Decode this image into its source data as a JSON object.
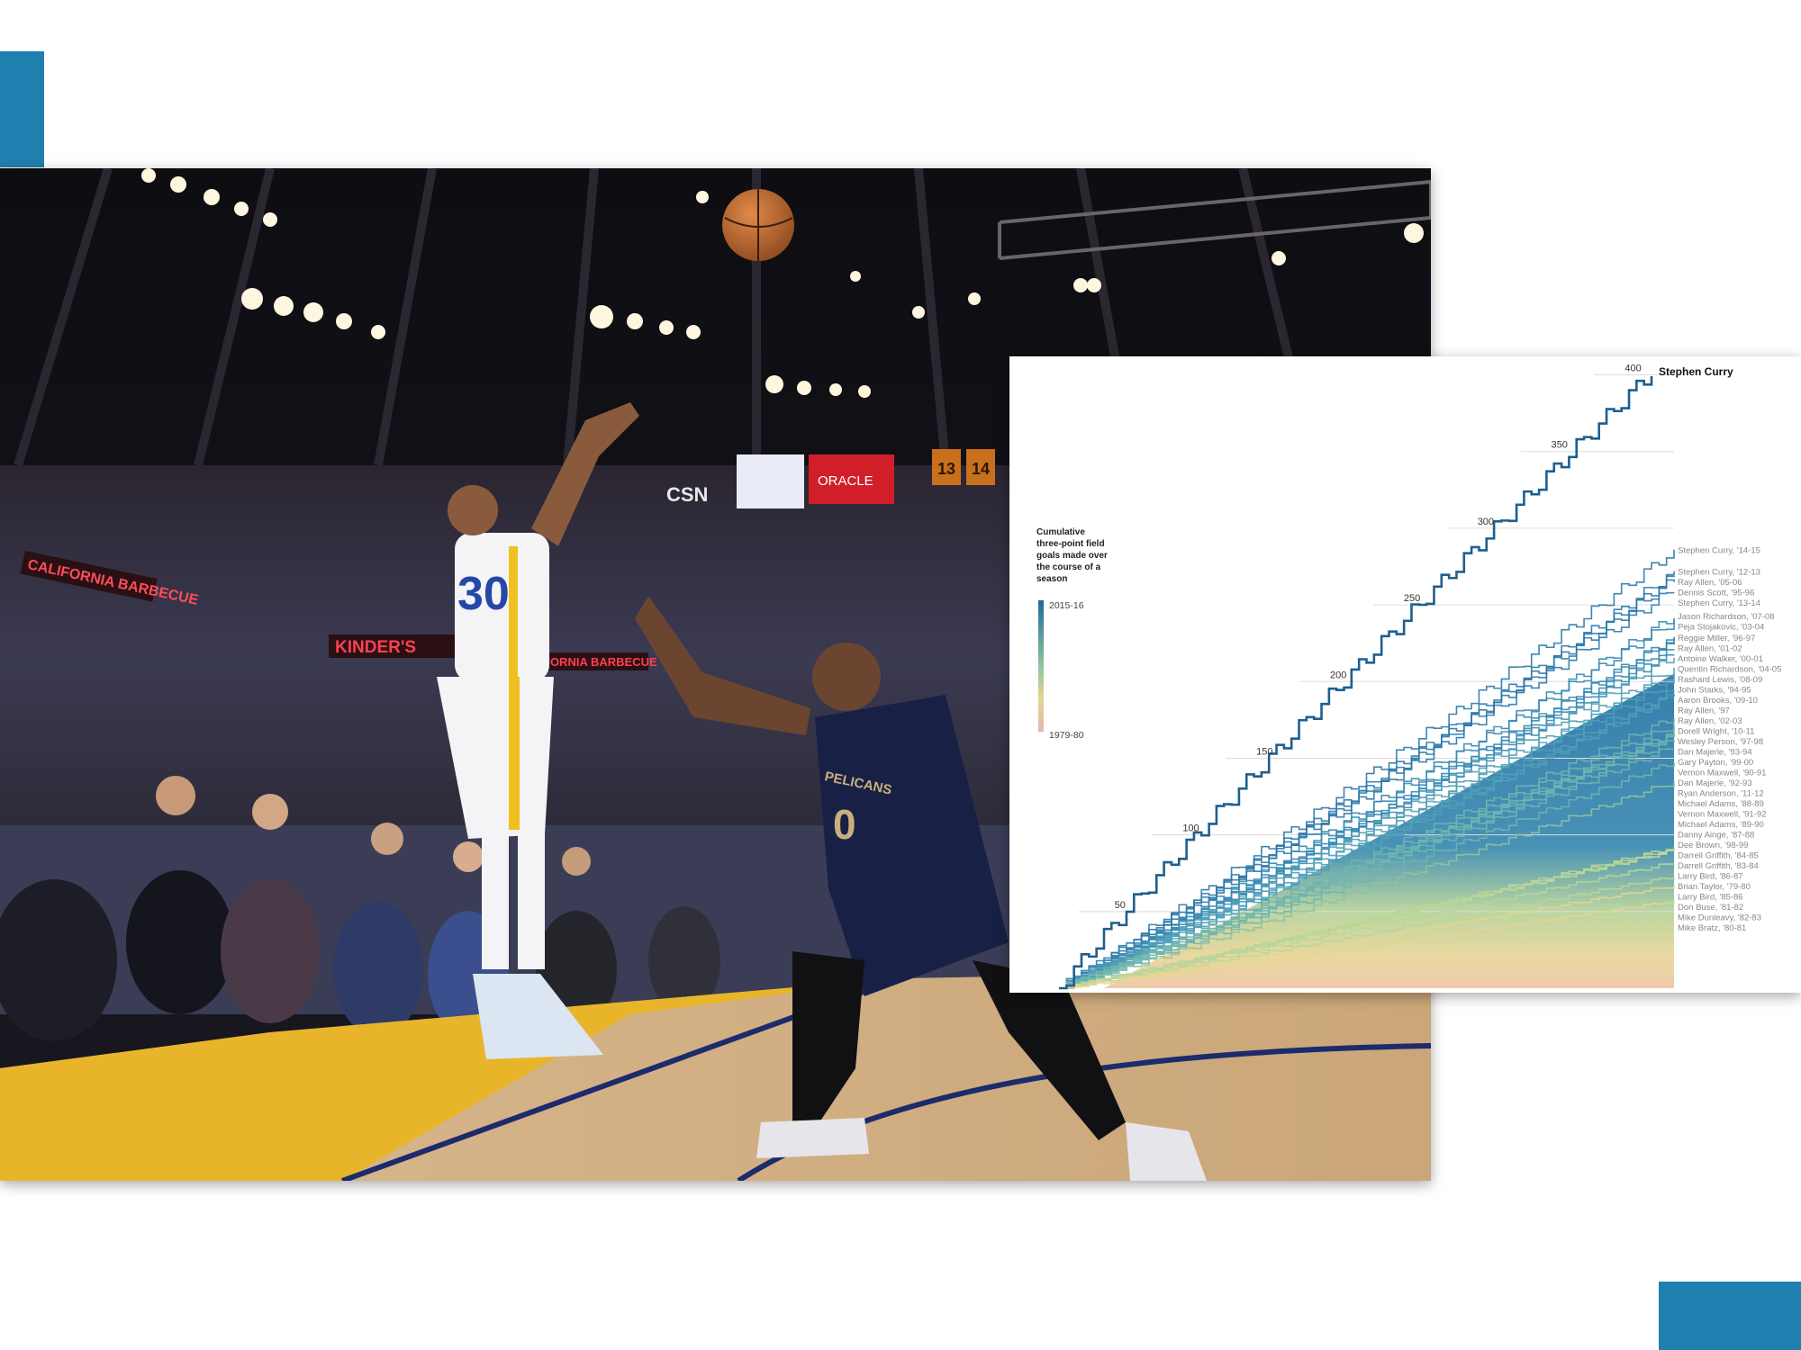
{
  "theme": {
    "accent": "#1f7fae",
    "curry_line": "#1d5f8f",
    "recent_season": "#2a78a8",
    "old_season": "#e3b4b6"
  },
  "photo": {
    "arena_signs": [
      "CALIFORNIA BARBECUE",
      "KINDER'S",
      "FORNIA BARBECUE",
      "CSN",
      "ORACLE",
      "13",
      "14"
    ],
    "jerseys": {
      "shooter": "30",
      "defender_team": "PELICANS",
      "defender_number": "0"
    }
  },
  "chart_data": {
    "type": "line",
    "title": "",
    "legend": {
      "title_lines": [
        "Cumulative",
        "three-point field",
        "goals made over",
        "the course of a",
        "season"
      ],
      "top_label": "2015-16",
      "bottom_label": "1979-80",
      "placement": "left"
    },
    "y_ticks": [
      50,
      100,
      150,
      200,
      250,
      300,
      350,
      400
    ],
    "ylim": [
      0,
      405
    ],
    "x_range_games": [
      0,
      82
    ],
    "highlight": {
      "name": "Stephen Curry",
      "season": "2015-16",
      "total": 402,
      "games": 79
    },
    "labeled_series": [
      {
        "name": "Stephen Curry, '14-15",
        "total": 286
      },
      {
        "name": "Stephen Curry, '12-13",
        "total": 272
      },
      {
        "name": "Ray Allen, '05-06",
        "total": 269
      },
      {
        "name": "Dennis Scott, '95-96",
        "total": 267
      },
      {
        "name": "Stephen Curry, '13-14",
        "total": 261
      },
      {
        "name": "Jason Richardson, '07-08",
        "total": 243
      },
      {
        "name": "Peja Stojakovic, '03-04",
        "total": 240
      },
      {
        "name": "Reggie Miller, '96-97",
        "total": 229
      },
      {
        "name": "Ray Allen, '01-02",
        "total": 229
      },
      {
        "name": "Antoine Walker, '00-01",
        "total": 221
      },
      {
        "name": "Quentin Richardson, '04-05",
        "total": 226
      },
      {
        "name": "Rashard Lewis, '08-09",
        "total": 220
      },
      {
        "name": "John Starks, '94-95",
        "total": 217
      },
      {
        "name": "Aaron Brooks, '09-10",
        "total": 209
      },
      {
        "name": "Ray Allen, '97",
        "total": 205
      },
      {
        "name": "Ray Allen, '02-03",
        "total": 201
      },
      {
        "name": "Dorell Wright, '10-11",
        "total": 194
      },
      {
        "name": "Wesley Person, '97-98",
        "total": 192
      },
      {
        "name": "Dan Majerle, '93-94",
        "total": 192
      },
      {
        "name": "Gary Payton, '99-00",
        "total": 177
      },
      {
        "name": "Vernon Maxwell, '90-91",
        "total": 172
      },
      {
        "name": "Dan Majerle, '92-93",
        "total": 167
      },
      {
        "name": "Ryan Anderson, '11-12",
        "total": 166
      },
      {
        "name": "Michael Adams, '88-89",
        "total": 166
      },
      {
        "name": "Vernon Maxwell, '91-92",
        "total": 162
      },
      {
        "name": "Michael Adams, '89-90",
        "total": 158
      },
      {
        "name": "Danny Ainge, '87-88",
        "total": 148
      },
      {
        "name": "Dee Brown, '98-99",
        "total": 135
      },
      {
        "name": "Darrell Griffith, '84-85",
        "total": 92
      },
      {
        "name": "Darrell Griffith, '83-84",
        "total": 91
      },
      {
        "name": "Larry Bird, '86-87",
        "total": 90
      },
      {
        "name": "Brian Taylor, '79-80",
        "total": 90
      },
      {
        "name": "Larry Bird, '85-86",
        "total": 82
      },
      {
        "name": "Don Buse, '81-82",
        "total": 73
      },
      {
        "name": "Mike Dunleavy, '82-83",
        "total": 67
      },
      {
        "name": "Mike Bratz, '80-81",
        "total": 57
      }
    ]
  }
}
